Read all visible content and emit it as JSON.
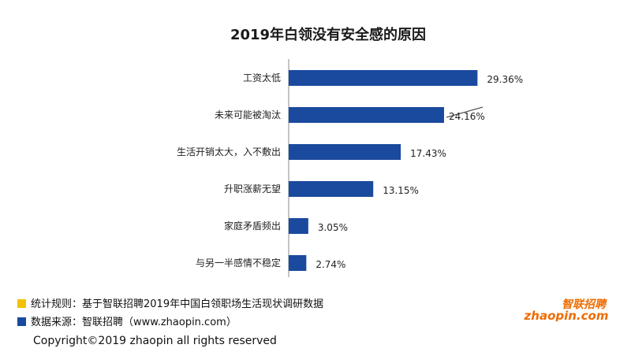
{
  "chart_data": {
    "type": "bar",
    "orientation": "horizontal",
    "title": "2019年白领没有安全感的原因",
    "categories": [
      "工资太低",
      "未来可能被淘汰",
      "生活开销太大，入不敷出",
      "升职涨薪无望",
      "家庭矛盾频出",
      "与另一半感情不稳定"
    ],
    "values": [
      29.36,
      24.16,
      17.43,
      13.15,
      3.05,
      2.74
    ],
    "value_labels": [
      "29.36%",
      "24.16%",
      "17.43%",
      "13.15%",
      "3.05%",
      "2.74%"
    ],
    "xlim": [
      0,
      30
    ],
    "bar_color": "#1a4a9e",
    "grid": false
  },
  "notes": {
    "rule": "统计规则：基于智联招聘2019年中国白领职场生活现状调研数据",
    "rule_color": "#f2c200",
    "source": "数据来源：智联招聘（www.zhaopin.com）",
    "source_color": "#1a4a9e"
  },
  "logo": {
    "cn": "智联招聘",
    "en": "zhaopin.com",
    "color": "#ef6c00"
  },
  "copyright": "Copyright©2019 zhaopin all rights reserved"
}
